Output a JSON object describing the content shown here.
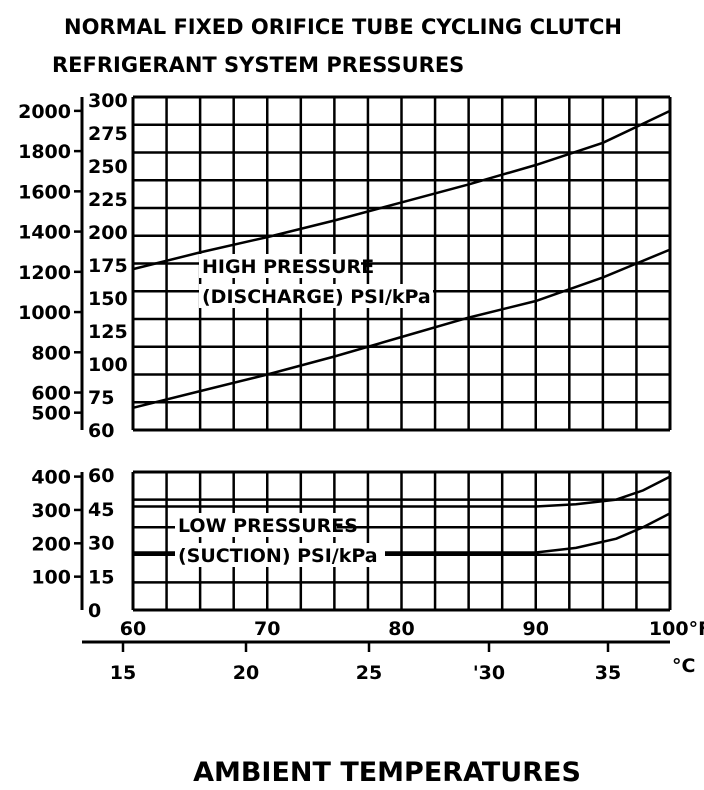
{
  "chart_data": {
    "type": "line",
    "title": [
      "NORMAL FIXED ORIFICE TUBE CYCLING  CLUTCH",
      "REFRIGERANT SYSTEM PRESSURES"
    ],
    "xlabel": "AMBIENT TEMPERATURES",
    "x_fahrenheit": {
      "ticks": [
        "60",
        "70",
        "80",
        "90",
        "100°F"
      ],
      "range": [
        60,
        100
      ]
    },
    "x_celsius": {
      "ticks": [
        "15",
        "20",
        "25",
        "'30",
        "35"
      ],
      "unit": "°C"
    },
    "panels": [
      {
        "name": "high",
        "annotation": [
          "HIGH PRESSURE",
          "(DISCHARGE) PSI/kPa"
        ],
        "psi_ticks": [
          "300",
          "275",
          "250",
          "225",
          "200",
          "175",
          "150",
          "125",
          "100",
          "75",
          "60"
        ],
        "kpa_ticks": [
          "2000",
          "1800",
          "1600",
          "1400",
          "1200",
          "1000",
          "800",
          "600",
          "500"
        ],
        "kpa_tick_psi": [
          290,
          261,
          232,
          203,
          174,
          145,
          116,
          87,
          72.5
        ],
        "ylim": [
          60,
          300
        ],
        "series": [
          {
            "x": [
              60,
              65,
              70,
              75,
              80,
              85,
              90,
              95,
              100
            ],
            "y": [
              176,
              188,
              199,
              211,
              224,
              237,
              251,
              267,
              290
            ]
          },
          {
            "x": [
              60,
              65,
              70,
              75,
              80,
              85,
              90,
              95,
              100
            ],
            "y": [
              76,
              88,
              100,
              113,
              127,
              141,
              153,
              170,
              190
            ]
          }
        ]
      },
      {
        "name": "low",
        "annotation": [
          "LOW PRESSURES",
          "(SUCTION) PSI/kPa"
        ],
        "psi_ticks": [
          "60",
          "45",
          "30",
          "15",
          "0"
        ],
        "kpa_ticks": [
          "400",
          "300",
          "200",
          "100"
        ],
        "kpa_tick_psi": [
          58,
          43.5,
          29,
          14.5
        ],
        "ylim": [
          0,
          60
        ],
        "series": [
          {
            "x": [
              60,
              90,
              93,
              96,
              98,
              100
            ],
            "y": [
              45,
              45,
              46,
              48,
              52,
              58
            ]
          },
          {
            "x": [
              60,
              90,
              93,
              96,
              98,
              100
            ],
            "y": [
              25,
              25,
              27,
              31,
              36,
              42
            ]
          }
        ]
      }
    ]
  }
}
